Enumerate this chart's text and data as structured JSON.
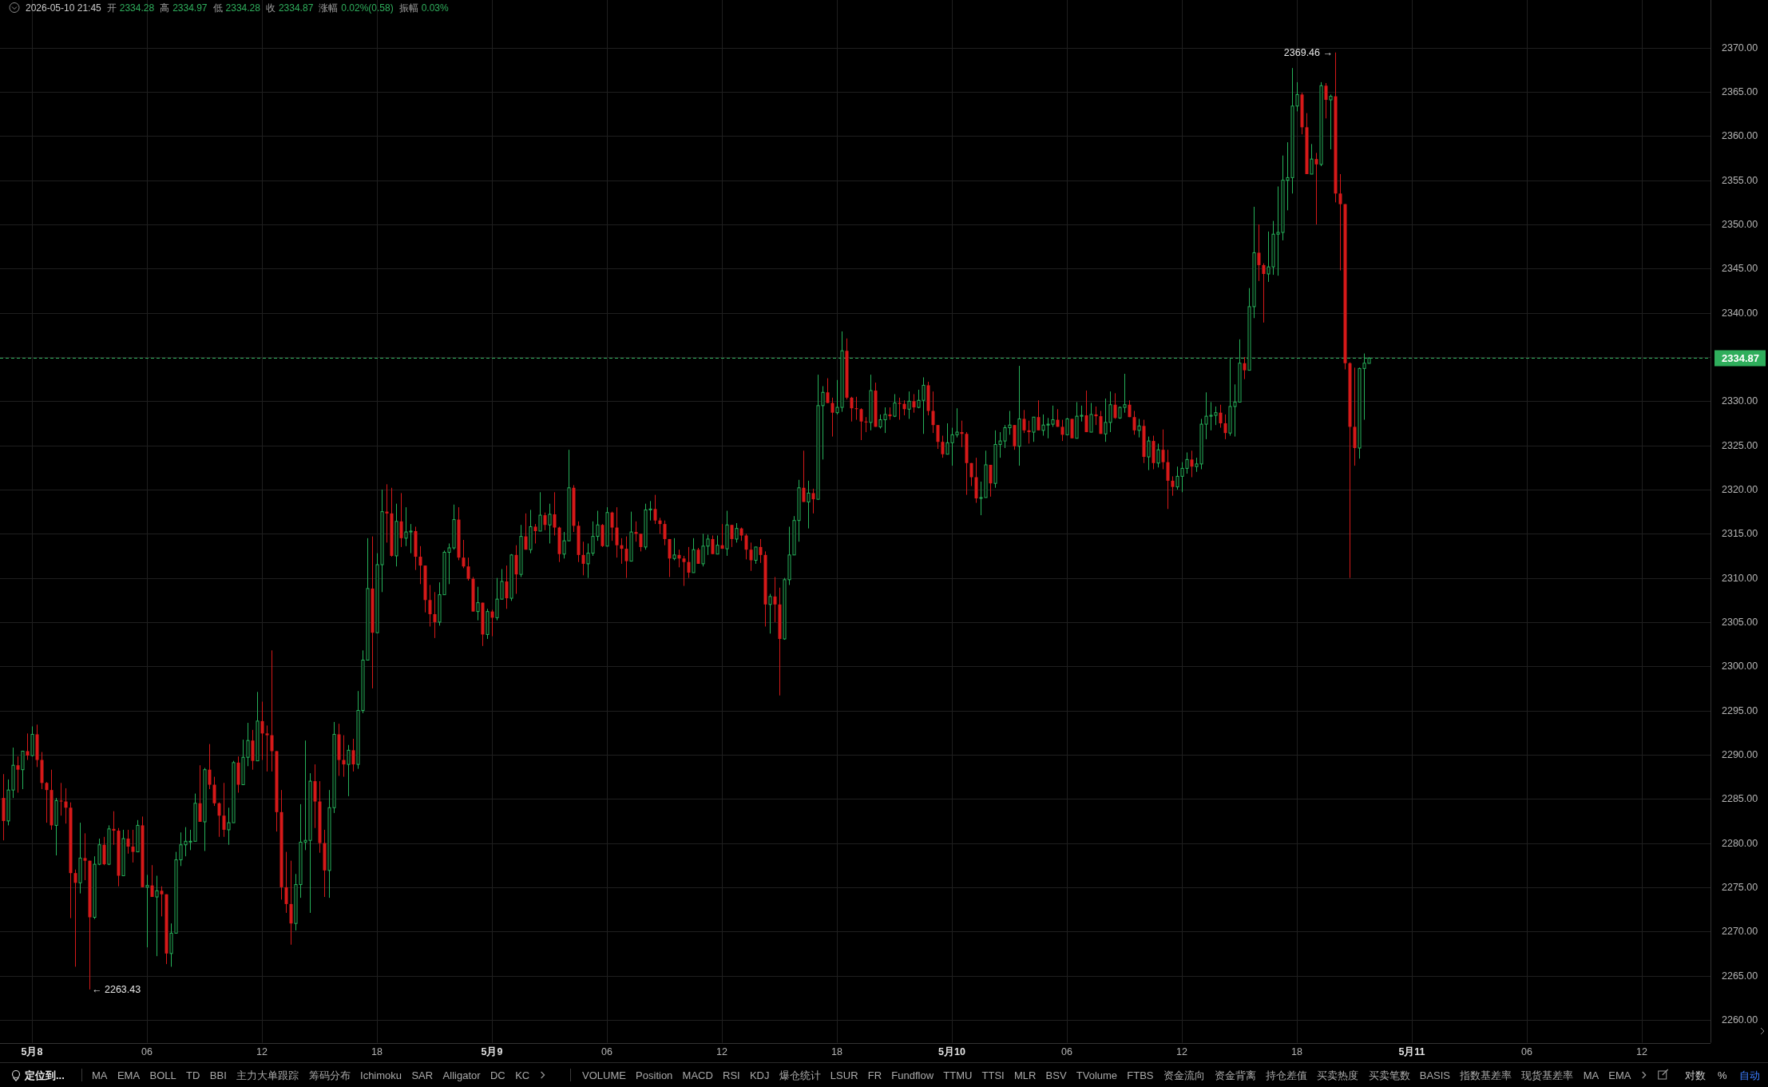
{
  "chart_data": {
    "type": "candlestick",
    "x": [
      "2026-05-07T22:30",
      "2026-05-07T22:45",
      "2026-05-07T23:00",
      "2026-05-07T23:15",
      "2026-05-07T23:30",
      "2026-05-07T23:45",
      "2026-05-08T00:00",
      "2026-05-08T00:15",
      "2026-05-08T00:30",
      "2026-05-08T00:45",
      "2026-05-08T01:00",
      "2026-05-08T01:15",
      "2026-05-08T01:30",
      "2026-05-08T01:45",
      "2026-05-08T02:00",
      "2026-05-08T02:15",
      "2026-05-08T02:30",
      "2026-05-08T02:45",
      "2026-05-08T03:00",
      "2026-05-08T03:15",
      "2026-05-08T03:30",
      "2026-05-08T03:45",
      "2026-05-08T04:00",
      "2026-05-08T04:15",
      "2026-05-08T04:30",
      "2026-05-08T04:45",
      "2026-05-08T05:00",
      "2026-05-08T05:15",
      "2026-05-08T05:30",
      "2026-05-08T05:45",
      "2026-05-08T06:00",
      "2026-05-08T06:15",
      "2026-05-08T06:30",
      "2026-05-08T06:45",
      "2026-05-08T07:00",
      "2026-05-08T07:15",
      "2026-05-08T07:30",
      "2026-05-08T07:45",
      "2026-05-08T08:00",
      "2026-05-08T08:15",
      "2026-05-08T08:30",
      "2026-05-08T08:45",
      "2026-05-08T09:00",
      "2026-05-08T09:15",
      "2026-05-08T09:30",
      "2026-05-08T09:45",
      "2026-05-08T10:00",
      "2026-05-08T10:15",
      "2026-05-08T10:30",
      "2026-05-08T10:45",
      "2026-05-08T11:00",
      "2026-05-08T11:15",
      "2026-05-08T11:30",
      "2026-05-08T11:45",
      "2026-05-08T12:00",
      "2026-05-08T12:15",
      "2026-05-08T12:30",
      "2026-05-08T12:45",
      "2026-05-08T13:00",
      "2026-05-08T13:15",
      "2026-05-08T13:30",
      "2026-05-08T13:45",
      "2026-05-08T14:00",
      "2026-05-08T14:15",
      "2026-05-08T14:30",
      "2026-05-08T14:45",
      "2026-05-08T15:00",
      "2026-05-08T15:15",
      "2026-05-08T15:30",
      "2026-05-08T15:45",
      "2026-05-08T16:00",
      "2026-05-08T16:15",
      "2026-05-08T16:30",
      "2026-05-08T16:45",
      "2026-05-08T17:00",
      "2026-05-08T17:15",
      "2026-05-08T17:30",
      "2026-05-08T17:45",
      "2026-05-08T18:00",
      "2026-05-08T18:15",
      "2026-05-08T18:30",
      "2026-05-08T18:45",
      "2026-05-08T19:00",
      "2026-05-08T19:15",
      "2026-05-08T19:30",
      "2026-05-08T19:45",
      "2026-05-08T20:00",
      "2026-05-08T20:15",
      "2026-05-08T20:30",
      "2026-05-08T20:45",
      "2026-05-08T21:00",
      "2026-05-08T21:15",
      "2026-05-08T21:30",
      "2026-05-08T21:45",
      "2026-05-08T22:00",
      "2026-05-08T22:15",
      "2026-05-08T22:30",
      "2026-05-08T22:45",
      "2026-05-08T23:00",
      "2026-05-08T23:15",
      "2026-05-08T23:30",
      "2026-05-08T23:45",
      "2026-05-09T00:00",
      "2026-05-09T00:15",
      "2026-05-09T00:30",
      "2026-05-09T00:45",
      "2026-05-09T01:00",
      "2026-05-09T01:15",
      "2026-05-09T01:30",
      "2026-05-09T01:45",
      "2026-05-09T02:00",
      "2026-05-09T02:15",
      "2026-05-09T02:30",
      "2026-05-09T02:45",
      "2026-05-09T03:00",
      "2026-05-09T03:15",
      "2026-05-09T03:30",
      "2026-05-09T03:45",
      "2026-05-09T04:00",
      "2026-05-09T04:15",
      "2026-05-09T04:30",
      "2026-05-09T04:45",
      "2026-05-09T05:00",
      "2026-05-09T05:15",
      "2026-05-09T05:30",
      "2026-05-09T05:45",
      "2026-05-09T06:00",
      "2026-05-09T06:15",
      "2026-05-09T06:30",
      "2026-05-09T06:45",
      "2026-05-09T07:00",
      "2026-05-09T07:15",
      "2026-05-09T07:30",
      "2026-05-09T07:45",
      "2026-05-09T08:00",
      "2026-05-09T08:15",
      "2026-05-09T08:30",
      "2026-05-09T08:45",
      "2026-05-09T09:00",
      "2026-05-09T09:15",
      "2026-05-09T09:30",
      "2026-05-09T09:45",
      "2026-05-09T10:00",
      "2026-05-09T10:15",
      "2026-05-09T10:30",
      "2026-05-09T10:45",
      "2026-05-09T11:00",
      "2026-05-09T11:15",
      "2026-05-09T11:30",
      "2026-05-09T11:45",
      "2026-05-09T12:00",
      "2026-05-09T12:15",
      "2026-05-09T12:30",
      "2026-05-09T12:45",
      "2026-05-09T13:00",
      "2026-05-09T13:15",
      "2026-05-09T13:30",
      "2026-05-09T13:45",
      "2026-05-09T14:00",
      "2026-05-09T14:15",
      "2026-05-09T14:30",
      "2026-05-09T14:45",
      "2026-05-09T15:00",
      "2026-05-09T15:15",
      "2026-05-09T15:30",
      "2026-05-09T15:45",
      "2026-05-09T16:00",
      "2026-05-09T16:15",
      "2026-05-09T16:30",
      "2026-05-09T16:45",
      "2026-05-09T17:00",
      "2026-05-09T17:15",
      "2026-05-09T17:30",
      "2026-05-09T17:45",
      "2026-05-09T18:00",
      "2026-05-09T18:15",
      "2026-05-09T18:30",
      "2026-05-09T18:45",
      "2026-05-09T19:00",
      "2026-05-09T19:15",
      "2026-05-09T19:30",
      "2026-05-09T19:45",
      "2026-05-09T20:00",
      "2026-05-09T20:15",
      "2026-05-09T20:30",
      "2026-05-09T20:45",
      "2026-05-09T21:00",
      "2026-05-09T21:15",
      "2026-05-09T21:30",
      "2026-05-09T21:45",
      "2026-05-09T22:00",
      "2026-05-09T22:15",
      "2026-05-09T22:30",
      "2026-05-09T22:45",
      "2026-05-09T23:00",
      "2026-05-09T23:15",
      "2026-05-09T23:30",
      "2026-05-09T23:45",
      "2026-05-10T00:00",
      "2026-05-10T00:15",
      "2026-05-10T00:30",
      "2026-05-10T00:45",
      "2026-05-10T01:00",
      "2026-05-10T01:15",
      "2026-05-10T01:30",
      "2026-05-10T01:45",
      "2026-05-10T02:00",
      "2026-05-10T02:15",
      "2026-05-10T02:30",
      "2026-05-10T02:45",
      "2026-05-10T03:00",
      "2026-05-10T03:15",
      "2026-05-10T03:30",
      "2026-05-10T03:45",
      "2026-05-10T04:00",
      "2026-05-10T04:15",
      "2026-05-10T04:30",
      "2026-05-10T04:45",
      "2026-05-10T05:00",
      "2026-05-10T05:15",
      "2026-05-10T05:30",
      "2026-05-10T05:45",
      "2026-05-10T06:00",
      "2026-05-10T06:15",
      "2026-05-10T06:30",
      "2026-05-10T06:45",
      "2026-05-10T07:00",
      "2026-05-10T07:15",
      "2026-05-10T07:30",
      "2026-05-10T07:45",
      "2026-05-10T08:00",
      "2026-05-10T08:15",
      "2026-05-10T08:30",
      "2026-05-10T08:45",
      "2026-05-10T09:00",
      "2026-05-10T09:15",
      "2026-05-10T09:30",
      "2026-05-10T09:45",
      "2026-05-10T10:00",
      "2026-05-10T10:15",
      "2026-05-10T10:30",
      "2026-05-10T10:45",
      "2026-05-10T11:00",
      "2026-05-10T11:15",
      "2026-05-10T11:30",
      "2026-05-10T11:45",
      "2026-05-10T12:00",
      "2026-05-10T12:15",
      "2026-05-10T12:30",
      "2026-05-10T12:45",
      "2026-05-10T13:00",
      "2026-05-10T13:15",
      "2026-05-10T13:30",
      "2026-05-10T13:45",
      "2026-05-10T14:00",
      "2026-05-10T14:15",
      "2026-05-10T14:30",
      "2026-05-10T14:45",
      "2026-05-10T15:00",
      "2026-05-10T15:15",
      "2026-05-10T15:30",
      "2026-05-10T15:45",
      "2026-05-10T16:00",
      "2026-05-10T16:15",
      "2026-05-10T16:30",
      "2026-05-10T16:45",
      "2026-05-10T17:00",
      "2026-05-10T17:15",
      "2026-05-10T17:30",
      "2026-05-10T17:45",
      "2026-05-10T18:00",
      "2026-05-10T18:15",
      "2026-05-10T18:30",
      "2026-05-10T18:45",
      "2026-05-10T19:00",
      "2026-05-10T19:15",
      "2026-05-10T19:30",
      "2026-05-10T19:45",
      "2026-05-10T20:00",
      "2026-05-10T20:15",
      "2026-05-10T20:30",
      "2026-05-10T20:45",
      "2026-05-10T21:00",
      "2026-05-10T21:15",
      "2026-05-10T21:30",
      "2026-05-10T21:45"
    ],
    "ohlc": [
      [
        2285.1,
        2287.8,
        2280.3,
        2282.5
      ],
      [
        2282.5,
        2287.2,
        2282.0,
        2286.0
      ],
      [
        2286.0,
        2290.8,
        2285.1,
        2288.8
      ],
      [
        2288.8,
        2289.8,
        2285.7,
        2288.3
      ],
      [
        2288.3,
        2290.4,
        2286.1,
        2290.4
      ],
      [
        2290.4,
        2292.4,
        2289.4,
        2289.9
      ],
      [
        2289.9,
        2293.2,
        2289.8,
        2292.3
      ],
      [
        2292.3,
        2293.4,
        2288.6,
        2289.4
      ],
      [
        2289.4,
        2290.3,
        2286.1,
        2286.8
      ],
      [
        2286.8,
        2286.9,
        2282.3,
        2286.0
      ],
      [
        2286.0,
        2288.3,
        2281.5,
        2282.0
      ],
      [
        2282.0,
        2285.1,
        2278.6,
        2284.8
      ],
      [
        2284.8,
        2286.8,
        2283.1,
        2284.7
      ],
      [
        2284.7,
        2286.2,
        2282.2,
        2284.0
      ],
      [
        2284.0,
        2284.6,
        2271.5,
        2276.6
      ],
      [
        2276.6,
        2277.0,
        2266.0,
        2275.5
      ],
      [
        2275.5,
        2282.3,
        2274.3,
        2278.3
      ],
      [
        2278.3,
        2281.1,
        2275.8,
        2278.0
      ],
      [
        2278.0,
        2278.0,
        2263.43,
        2271.6
      ],
      [
        2271.6,
        2278.5,
        2271.4,
        2277.6
      ],
      [
        2277.6,
        2280.5,
        2277.5,
        2279.8
      ],
      [
        2279.8,
        2280.7,
        2277.5,
        2277.6
      ],
      [
        2277.6,
        2282.0,
        2277.5,
        2281.6
      ],
      [
        2281.6,
        2283.6,
        2279.8,
        2281.4
      ],
      [
        2281.4,
        2281.7,
        2275.1,
        2276.3
      ],
      [
        2276.3,
        2281.5,
        2276.3,
        2280.5
      ],
      [
        2280.5,
        2281.5,
        2278.8,
        2279.6
      ],
      [
        2279.6,
        2281.5,
        2277.8,
        2279.0
      ],
      [
        2279.0,
        2282.6,
        2279.0,
        2282.0
      ],
      [
        2282.0,
        2283.0,
        2275.0,
        2275.0
      ],
      [
        2275.0,
        2276.4,
        2268.2,
        2275.2
      ],
      [
        2275.2,
        2277.5,
        2273.9,
        2273.9
      ],
      [
        2273.9,
        2276.3,
        2267.2,
        2274.6
      ],
      [
        2274.6,
        2275.1,
        2271.7,
        2274.2
      ],
      [
        2274.2,
        2274.2,
        2266.3,
        2267.5
      ],
      [
        2267.5,
        2270.9,
        2266.0,
        2269.8
      ],
      [
        2269.8,
        2279.0,
        2269.8,
        2278.1
      ],
      [
        2278.1,
        2281.2,
        2277.4,
        2279.8
      ],
      [
        2279.8,
        2281.8,
        2278.5,
        2280.2
      ],
      [
        2280.2,
        2281.5,
        2279.2,
        2280.2
      ],
      [
        2280.2,
        2285.6,
        2280.2,
        2284.5
      ],
      [
        2284.5,
        2288.8,
        2282.4,
        2282.4
      ],
      [
        2282.4,
        2288.5,
        2279.1,
        2288.3
      ],
      [
        2288.3,
        2291.2,
        2286.1,
        2286.6
      ],
      [
        2286.6,
        2287.5,
        2284.2,
        2284.5
      ],
      [
        2284.5,
        2284.6,
        2280.7,
        2283.1
      ],
      [
        2283.1,
        2286.8,
        2280.7,
        2281.5
      ],
      [
        2281.5,
        2284.0,
        2279.8,
        2282.3
      ],
      [
        2282.3,
        2289.3,
        2282.3,
        2289.1
      ],
      [
        2289.1,
        2289.8,
        2285.7,
        2286.6
      ],
      [
        2286.6,
        2291.7,
        2286.6,
        2289.7
      ],
      [
        2289.7,
        2293.6,
        2288.7,
        2291.6
      ],
      [
        2291.6,
        2292.8,
        2288.3,
        2289.3
      ],
      [
        2289.3,
        2297.1,
        2289.3,
        2293.8
      ],
      [
        2293.8,
        2296.0,
        2289.4,
        2292.4
      ],
      [
        2292.4,
        2293.3,
        2288.1,
        2292.2
      ],
      [
        2292.2,
        2301.8,
        2288.1,
        2290.4
      ],
      [
        2290.4,
        2290.4,
        2281.3,
        2283.5
      ],
      [
        2283.5,
        2286.0,
        2273.6,
        2275.0
      ],
      [
        2275.0,
        2279.0,
        2272.1,
        2273.1
      ],
      [
        2273.1,
        2278.0,
        2268.5,
        2270.9
      ],
      [
        2270.9,
        2276.5,
        2270.1,
        2275.3
      ],
      [
        2275.3,
        2284.4,
        2273.8,
        2280.1
      ],
      [
        2280.1,
        2291.6,
        2279.2,
        2280.3
      ],
      [
        2280.3,
        2287.9,
        2272.1,
        2287.0
      ],
      [
        2287.0,
        2288.9,
        2281.7,
        2284.7
      ],
      [
        2284.7,
        2287.0,
        2278.9,
        2280.0
      ],
      [
        2280.0,
        2281.5,
        2273.9,
        2276.9
      ],
      [
        2276.9,
        2286.0,
        2273.8,
        2284.0
      ],
      [
        2284.0,
        2293.7,
        2283.4,
        2292.3
      ],
      [
        2292.3,
        2293.5,
        2287.6,
        2289.4
      ],
      [
        2289.4,
        2292.2,
        2287.5,
        2288.9
      ],
      [
        2288.9,
        2291.1,
        2285.3,
        2290.5
      ],
      [
        2290.5,
        2291.8,
        2288.1,
        2288.9
      ],
      [
        2288.9,
        2297.2,
        2288.4,
        2295.0
      ],
      [
        2295.0,
        2301.8,
        2294.7,
        2300.7
      ],
      [
        2300.7,
        2314.5,
        2300.7,
        2308.8
      ],
      [
        2308.8,
        2314.7,
        2297.5,
        2303.8
      ],
      [
        2303.8,
        2312.8,
        2303.8,
        2311.5
      ],
      [
        2311.5,
        2320.0,
        2308.4,
        2317.5
      ],
      [
        2317.5,
        2320.6,
        2314.0,
        2317.3
      ],
      [
        2317.3,
        2320.2,
        2312.4,
        2312.5
      ],
      [
        2312.5,
        2318.4,
        2311.3,
        2316.4
      ],
      [
        2316.4,
        2319.6,
        2313.5,
        2314.5
      ],
      [
        2314.5,
        2318.0,
        2313.6,
        2315.2
      ],
      [
        2315.2,
        2316.1,
        2312.8,
        2315.3
      ],
      [
        2315.3,
        2315.8,
        2310.9,
        2312.4
      ],
      [
        2312.4,
        2313.6,
        2309.3,
        2311.4
      ],
      [
        2311.4,
        2311.4,
        2306.1,
        2307.5
      ],
      [
        2307.5,
        2309.2,
        2304.5,
        2305.9
      ],
      [
        2305.9,
        2308.4,
        2303.2,
        2305.0
      ],
      [
        2305.0,
        2309.5,
        2304.6,
        2308.1
      ],
      [
        2308.1,
        2313.1,
        2308.1,
        2312.9
      ],
      [
        2312.9,
        2313.9,
        2309.3,
        2313.4
      ],
      [
        2313.4,
        2318.3,
        2313.2,
        2316.6
      ],
      [
        2316.6,
        2318.0,
        2312.0,
        2312.3
      ],
      [
        2312.3,
        2314.3,
        2311.1,
        2311.3
      ],
      [
        2311.3,
        2312.3,
        2309.7,
        2309.9
      ],
      [
        2309.9,
        2310.1,
        2306.2,
        2306.2
      ],
      [
        2306.2,
        2309.0,
        2305.2,
        2307.2
      ],
      [
        2307.2,
        2307.2,
        2302.3,
        2303.6
      ],
      [
        2303.6,
        2306.5,
        2303.1,
        2306.2
      ],
      [
        2306.2,
        2306.4,
        2303.4,
        2305.5
      ],
      [
        2305.5,
        2310.0,
        2305.2,
        2307.6
      ],
      [
        2307.6,
        2311.0,
        2307.6,
        2309.6
      ],
      [
        2309.6,
        2311.4,
        2306.5,
        2307.7
      ],
      [
        2307.7,
        2312.7,
        2307.4,
        2312.6
      ],
      [
        2312.6,
        2313.7,
        2308.2,
        2310.4
      ],
      [
        2310.4,
        2316.0,
        2310.1,
        2314.7
      ],
      [
        2314.7,
        2317.3,
        2313.2,
        2313.2
      ],
      [
        2313.2,
        2317.7,
        2312.8,
        2315.8
      ],
      [
        2315.8,
        2316.1,
        2313.9,
        2315.3
      ],
      [
        2315.3,
        2319.7,
        2315.3,
        2317.1
      ],
      [
        2317.1,
        2317.4,
        2315.4,
        2316.0
      ],
      [
        2316.0,
        2318.4,
        2313.9,
        2317.2
      ],
      [
        2317.2,
        2319.7,
        2314.8,
        2315.7
      ],
      [
        2315.7,
        2315.8,
        2311.8,
        2312.7
      ],
      [
        2312.7,
        2315.2,
        2312.2,
        2314.2
      ],
      [
        2314.2,
        2324.5,
        2314.2,
        2320.2
      ],
      [
        2320.2,
        2320.5,
        2315.2,
        2315.9
      ],
      [
        2315.9,
        2316.4,
        2311.8,
        2312.6
      ],
      [
        2312.6,
        2314.1,
        2310.3,
        2311.6
      ],
      [
        2311.6,
        2313.9,
        2310.0,
        2312.8
      ],
      [
        2312.8,
        2316.4,
        2312.5,
        2314.7
      ],
      [
        2314.7,
        2317.6,
        2314.2,
        2316.0
      ],
      [
        2316.0,
        2316.1,
        2313.5,
        2313.6
      ],
      [
        2313.6,
        2318.0,
        2313.6,
        2317.4
      ],
      [
        2317.4,
        2317.5,
        2314.2,
        2315.7
      ],
      [
        2315.7,
        2318.0,
        2312.3,
        2313.7
      ],
      [
        2313.7,
        2314.5,
        2311.6,
        2313.3
      ],
      [
        2313.3,
        2314.7,
        2310.0,
        2311.9
      ],
      [
        2311.9,
        2317.5,
        2311.9,
        2315.2
      ],
      [
        2315.2,
        2316.4,
        2314.1,
        2315.0
      ],
      [
        2315.0,
        2315.0,
        2313.0,
        2313.5
      ],
      [
        2313.5,
        2318.4,
        2313.2,
        2317.7
      ],
      [
        2317.7,
        2318.7,
        2316.5,
        2317.8
      ],
      [
        2317.8,
        2319.4,
        2316.1,
        2316.5
      ],
      [
        2316.5,
        2316.8,
        2315.0,
        2316.1
      ],
      [
        2316.1,
        2316.5,
        2313.7,
        2314.4
      ],
      [
        2314.4,
        2314.4,
        2310.1,
        2312.2
      ],
      [
        2312.2,
        2314.5,
        2312.0,
        2312.6
      ],
      [
        2312.6,
        2313.2,
        2311.2,
        2312.2
      ],
      [
        2312.2,
        2312.5,
        2309.1,
        2311.8
      ],
      [
        2311.8,
        2313.5,
        2310.0,
        2310.6
      ],
      [
        2310.6,
        2314.5,
        2310.6,
        2313.2
      ],
      [
        2313.2,
        2313.4,
        2311.6,
        2311.6
      ],
      [
        2311.6,
        2315.0,
        2311.3,
        2313.6
      ],
      [
        2313.6,
        2314.9,
        2312.6,
        2314.4
      ],
      [
        2314.4,
        2314.8,
        2312.7,
        2312.7
      ],
      [
        2312.7,
        2314.8,
        2312.7,
        2313.7
      ],
      [
        2313.7,
        2316.1,
        2313.3,
        2313.3
      ],
      [
        2313.3,
        2317.6,
        2312.5,
        2316.0
      ],
      [
        2316.0,
        2316.0,
        2313.5,
        2314.4
      ],
      [
        2314.4,
        2316.2,
        2314.0,
        2315.6
      ],
      [
        2315.6,
        2315.7,
        2314.2,
        2314.8
      ],
      [
        2314.8,
        2315.0,
        2312.1,
        2313.2
      ],
      [
        2313.2,
        2314.0,
        2310.8,
        2312.0
      ],
      [
        2312.0,
        2313.5,
        2311.6,
        2313.5
      ],
      [
        2313.5,
        2314.4,
        2311.7,
        2312.6
      ],
      [
        2312.6,
        2313.0,
        2304.5,
        2307.0
      ],
      [
        2307.0,
        2308.2,
        2303.7,
        2307.9
      ],
      [
        2307.9,
        2310.1,
        2305.0,
        2307.0
      ],
      [
        2307.0,
        2308.9,
        2296.7,
        2303.1
      ],
      [
        2303.1,
        2310.0,
        2303.0,
        2309.8
      ],
      [
        2309.8,
        2315.8,
        2309.2,
        2312.6
      ],
      [
        2312.6,
        2317.0,
        2312.6,
        2316.5
      ],
      [
        2316.5,
        2321.1,
        2314.1,
        2320.2
      ],
      [
        2320.2,
        2324.4,
        2318.6,
        2318.6
      ],
      [
        2318.6,
        2321.0,
        2315.6,
        2319.6
      ],
      [
        2319.6,
        2320.1,
        2317.3,
        2318.9
      ],
      [
        2318.9,
        2333.0,
        2318.9,
        2329.5
      ],
      [
        2329.5,
        2331.7,
        2323.4,
        2331.0
      ],
      [
        2331.0,
        2332.6,
        2329.8,
        2329.8
      ],
      [
        2329.8,
        2330.4,
        2326.0,
        2328.7
      ],
      [
        2328.7,
        2332.4,
        2328.5,
        2329.3
      ],
      [
        2329.3,
        2337.9,
        2328.8,
        2335.7
      ],
      [
        2335.7,
        2337.1,
        2330.2,
        2330.4
      ],
      [
        2330.4,
        2330.5,
        2327.7,
        2329.2
      ],
      [
        2329.2,
        2330.5,
        2327.9,
        2329.1
      ],
      [
        2329.1,
        2329.2,
        2325.6,
        2327.7
      ],
      [
        2327.7,
        2328.2,
        2326.5,
        2327.6
      ],
      [
        2327.6,
        2333.0,
        2326.7,
        2331.2
      ],
      [
        2331.2,
        2332.1,
        2327.1,
        2327.1
      ],
      [
        2327.1,
        2328.5,
        2326.9,
        2327.9
      ],
      [
        2327.9,
        2329.3,
        2326.4,
        2328.5
      ],
      [
        2328.5,
        2329.3,
        2327.9,
        2328.3
      ],
      [
        2328.3,
        2330.8,
        2328.2,
        2329.8
      ],
      [
        2329.8,
        2330.4,
        2327.9,
        2329.7
      ],
      [
        2329.7,
        2330.1,
        2328.4,
        2329.1
      ],
      [
        2329.1,
        2331.1,
        2328.0,
        2330.0
      ],
      [
        2330.0,
        2330.8,
        2328.7,
        2329.3
      ],
      [
        2329.3,
        2331.3,
        2329.2,
        2330.1
      ],
      [
        2330.1,
        2332.7,
        2326.3,
        2331.8
      ],
      [
        2331.8,
        2332.2,
        2328.4,
        2328.9
      ],
      [
        2328.9,
        2331.1,
        2326.4,
        2327.3
      ],
      [
        2327.3,
        2327.3,
        2324.6,
        2325.4
      ],
      [
        2325.4,
        2326.1,
        2323.6,
        2324.0
      ],
      [
        2324.0,
        2327.5,
        2324.0,
        2325.3
      ],
      [
        2325.3,
        2327.0,
        2322.7,
        2326.2
      ],
      [
        2326.2,
        2329.2,
        2325.9,
        2326.5
      ],
      [
        2326.5,
        2327.8,
        2324.8,
        2326.3
      ],
      [
        2326.3,
        2326.5,
        2319.4,
        2323.0
      ],
      [
        2323.0,
        2323.0,
        2320.4,
        2321.4
      ],
      [
        2321.4,
        2323.6,
        2318.5,
        2319.0
      ],
      [
        2319.0,
        2320.9,
        2317.1,
        2319.1
      ],
      [
        2319.1,
        2324.4,
        2319.1,
        2322.8
      ],
      [
        2322.8,
        2322.8,
        2319.2,
        2320.7
      ],
      [
        2320.7,
        2326.7,
        2320.2,
        2325.1
      ],
      [
        2325.1,
        2326.5,
        2323.6,
        2325.5
      ],
      [
        2325.5,
        2327.3,
        2324.7,
        2327.0
      ],
      [
        2327.0,
        2328.9,
        2326.2,
        2327.3
      ],
      [
        2327.3,
        2327.3,
        2324.5,
        2324.9
      ],
      [
        2324.9,
        2334.0,
        2322.7,
        2328.0
      ],
      [
        2328.0,
        2329.0,
        2326.4,
        2326.7
      ],
      [
        2326.7,
        2327.8,
        2325.2,
        2326.5
      ],
      [
        2326.5,
        2328.2,
        2325.4,
        2328.2
      ],
      [
        2328.2,
        2330.1,
        2326.7,
        2326.7
      ],
      [
        2326.7,
        2328.5,
        2326.1,
        2327.3
      ],
      [
        2327.3,
        2328.1,
        2325.8,
        2327.4
      ],
      [
        2327.4,
        2329.5,
        2327.1,
        2327.9
      ],
      [
        2327.9,
        2329.1,
        2327.1,
        2327.1
      ],
      [
        2327.1,
        2327.9,
        2325.5,
        2326.2
      ],
      [
        2326.2,
        2328.1,
        2326.2,
        2328.0
      ],
      [
        2328.0,
        2328.0,
        2325.8,
        2325.8
      ],
      [
        2325.8,
        2329.9,
        2325.8,
        2328.3
      ],
      [
        2328.3,
        2329.5,
        2327.7,
        2328.4
      ],
      [
        2328.4,
        2331.2,
        2326.5,
        2326.5
      ],
      [
        2326.5,
        2329.8,
        2326.5,
        2328.5
      ],
      [
        2328.5,
        2329.4,
        2327.3,
        2328.3
      ],
      [
        2328.3,
        2328.9,
        2326.3,
        2326.3
      ],
      [
        2326.3,
        2330.3,
        2325.4,
        2327.6
      ],
      [
        2327.6,
        2331.1,
        2326.5,
        2329.6
      ],
      [
        2329.6,
        2330.9,
        2328.0,
        2328.1
      ],
      [
        2328.1,
        2329.4,
        2328.0,
        2329.3
      ],
      [
        2329.3,
        2333.1,
        2328.7,
        2329.6
      ],
      [
        2329.6,
        2330.1,
        2328.2,
        2328.2
      ],
      [
        2328.2,
        2328.9,
        2326.2,
        2326.7
      ],
      [
        2326.7,
        2328.0,
        2325.9,
        2327.2
      ],
      [
        2327.2,
        2327.9,
        2323.0,
        2323.7
      ],
      [
        2323.7,
        2326.0,
        2322.2,
        2325.5
      ],
      [
        2325.5,
        2326.1,
        2322.3,
        2323.0
      ],
      [
        2323.0,
        2325.2,
        2322.5,
        2324.5
      ],
      [
        2324.5,
        2326.8,
        2322.3,
        2323.1
      ],
      [
        2323.1,
        2324.5,
        2317.8,
        2321.0
      ],
      [
        2321.0,
        2321.5,
        2319.3,
        2320.3
      ],
      [
        2320.3,
        2322.6,
        2320.0,
        2321.5
      ],
      [
        2321.5,
        2323.1,
        2319.7,
        2322.4
      ],
      [
        2322.4,
        2324.2,
        2321.8,
        2323.4
      ],
      [
        2323.4,
        2324.4,
        2321.4,
        2322.6
      ],
      [
        2322.6,
        2323.6,
        2322.0,
        2322.9
      ],
      [
        2322.9,
        2328.0,
        2322.3,
        2327.4
      ],
      [
        2327.4,
        2331.0,
        2325.7,
        2328.3
      ],
      [
        2328.3,
        2329.9,
        2326.7,
        2328.4
      ],
      [
        2328.4,
        2329.4,
        2327.3,
        2328.7
      ],
      [
        2328.7,
        2329.6,
        2327.0,
        2327.5
      ],
      [
        2327.5,
        2328.5,
        2325.7,
        2326.4
      ],
      [
        2326.4,
        2334.8,
        2326.1,
        2329.4
      ],
      [
        2329.4,
        2331.9,
        2326.0,
        2329.9
      ],
      [
        2329.9,
        2337.0,
        2329.9,
        2334.3
      ],
      [
        2334.3,
        2335.0,
        2332.5,
        2333.5
      ],
      [
        2333.5,
        2342.8,
        2333.5,
        2340.7
      ],
      [
        2340.7,
        2352.0,
        2339.4,
        2346.8
      ],
      [
        2346.8,
        2350.0,
        2343.6,
        2345.4
      ],
      [
        2345.4,
        2345.6,
        2338.9,
        2344.4
      ],
      [
        2344.4,
        2349.2,
        2343.5,
        2345.2
      ],
      [
        2345.2,
        2350.4,
        2344.3,
        2348.9
      ],
      [
        2348.9,
        2354.3,
        2344.2,
        2349.1
      ],
      [
        2349.1,
        2357.8,
        2348.2,
        2355.0
      ],
      [
        2355.0,
        2359.3,
        2351.6,
        2355.3
      ],
      [
        2355.3,
        2367.7,
        2353.5,
        2363.4
      ],
      [
        2363.4,
        2366.1,
        2362.8,
        2364.7
      ],
      [
        2364.7,
        2364.9,
        2360.2,
        2361.0
      ],
      [
        2361.0,
        2362.6,
        2355.7,
        2355.7
      ],
      [
        2355.7,
        2359.1,
        2355.7,
        2357.4
      ],
      [
        2357.4,
        2358.1,
        2350.0,
        2356.8
      ],
      [
        2356.8,
        2366.1,
        2356.6,
        2365.7
      ],
      [
        2365.7,
        2366.0,
        2362.0,
        2364.1
      ],
      [
        2364.1,
        2364.7,
        2358.5,
        2364.5
      ],
      [
        2364.5,
        2369.46,
        2352.5,
        2353.5
      ],
      [
        2353.5,
        2355.7,
        2344.8,
        2352.3
      ],
      [
        2352.3,
        2352.3,
        2333.6,
        2334.3
      ],
      [
        2334.3,
        2334.4,
        2310.0,
        2327.1
      ],
      [
        2327.1,
        2333.8,
        2322.7,
        2324.7
      ],
      [
        2324.7,
        2333.8,
        2323.5,
        2333.7
      ],
      [
        2333.7,
        2335.4,
        2327.9,
        2334.3
      ],
      [
        2334.28,
        2334.97,
        2334.28,
        2334.87
      ]
    ],
    "colors": [
      "#d61919",
      "#26b15a",
      "#26b15a",
      "#d61919",
      "#26b15a",
      "#d61919",
      "#26b15a",
      "#d61919",
      "#d61919",
      "#d61919",
      "#d61919",
      "#26b15a",
      "#d61919",
      "#d61919",
      "#d61919",
      "#d61919",
      "#26b15a",
      "#d61919",
      "#d61919",
      "#26b15a",
      "#26b15a",
      "#d61919",
      "#26b15a",
      "#d61919",
      "#d61919",
      "#26b15a",
      "#d61919",
      "#d61919",
      "#26b15a",
      "#d61919",
      "#26b15a",
      "#d61919",
      "#26b15a",
      "#d61919",
      "#d61919",
      "#26b15a",
      "#26b15a",
      "#26b15a",
      "#26b15a",
      "#26b15a",
      "#26b15a",
      "#d61919",
      "#26b15a",
      "#d61919",
      "#d61919",
      "#d61919",
      "#d61919",
      "#26b15a",
      "#26b15a",
      "#d61919",
      "#26b15a",
      "#26b15a",
      "#d61919",
      "#26b15a",
      "#d61919",
      "#d61919",
      "#d61919",
      "#d61919",
      "#d61919",
      "#d61919",
      "#d61919",
      "#26b15a",
      "#26b15a",
      "#26b15a",
      "#26b15a",
      "#d61919",
      "#d61919",
      "#d61919",
      "#26b15a",
      "#26b15a",
      "#d61919",
      "#d61919",
      "#26b15a",
      "#d61919",
      "#26b15a",
      "#26b15a",
      "#26b15a",
      "#d61919",
      "#26b15a",
      "#26b15a",
      "#d61919",
      "#d61919",
      "#26b15a",
      "#d61919",
      "#26b15a",
      "#26b15a",
      "#d61919",
      "#d61919",
      "#d61919",
      "#d61919",
      "#d61919",
      "#26b15a",
      "#26b15a",
      "#26b15a",
      "#26b15a",
      "#d61919",
      "#d61919",
      "#d61919",
      "#d61919",
      "#26b15a",
      "#d61919",
      "#26b15a",
      "#d61919",
      "#26b15a",
      "#26b15a",
      "#d61919",
      "#26b15a",
      "#d61919",
      "#26b15a",
      "#d61919",
      "#26b15a",
      "#d61919",
      "#26b15a",
      "#d61919",
      "#26b15a",
      "#d61919",
      "#d61919",
      "#26b15a",
      "#26b15a",
      "#d61919",
      "#d61919",
      "#d61919",
      "#26b15a",
      "#26b15a",
      "#26b15a",
      "#d61919",
      "#26b15a",
      "#d61919",
      "#d61919",
      "#d61919",
      "#d61919",
      "#26b15a",
      "#d61919",
      "#d61919",
      "#26b15a",
      "#26b15a",
      "#d61919",
      "#d61919",
      "#d61919",
      "#d61919",
      "#26b15a",
      "#d61919",
      "#d61919",
      "#d61919",
      "#26b15a",
      "#d61919",
      "#26b15a",
      "#26b15a",
      "#d61919",
      "#26b15a",
      "#d61919",
      "#26b15a",
      "#d61919",
      "#26b15a",
      "#d61919",
      "#d61919",
      "#d61919",
      "#26b15a",
      "#d61919",
      "#d61919",
      "#26b15a",
      "#d61919",
      "#d61919",
      "#26b15a",
      "#26b15a",
      "#26b15a",
      "#26b15a",
      "#d61919",
      "#26b15a",
      "#d61919",
      "#26b15a",
      "#26b15a",
      "#d61919",
      "#d61919",
      "#26b15a",
      "#26b15a",
      "#d61919",
      "#d61919",
      "#d61919",
      "#d61919",
      "#d61919",
      "#26b15a",
      "#d61919",
      "#26b15a",
      "#26b15a",
      "#d61919",
      "#26b15a",
      "#d61919",
      "#d61919",
      "#26b15a",
      "#d61919",
      "#26b15a",
      "#26b15a",
      "#d61919",
      "#d61919",
      "#d61919",
      "#d61919",
      "#26b15a",
      "#26b15a",
      "#26b15a",
      "#d61919",
      "#d61919",
      "#d61919",
      "#d61919",
      "#26b15a",
      "#26b15a",
      "#d61919",
      "#26b15a",
      "#26b15a",
      "#26b15a",
      "#26b15a",
      "#d61919",
      "#26b15a",
      "#d61919",
      "#d61919",
      "#26b15a",
      "#d61919",
      "#26b15a",
      "#26b15a",
      "#26b15a",
      "#d61919",
      "#d61919",
      "#26b15a",
      "#d61919",
      "#26b15a",
      "#26b15a",
      "#d61919",
      "#26b15a",
      "#d61919",
      "#d61919",
      "#26b15a",
      "#26b15a",
      "#d61919",
      "#26b15a",
      "#26b15a",
      "#d61919",
      "#d61919",
      "#26b15a",
      "#d61919",
      "#26b15a",
      "#d61919",
      "#26b15a",
      "#d61919",
      "#d61919",
      "#d61919",
      "#26b15a",
      "#26b15a",
      "#26b15a",
      "#d61919",
      "#26b15a",
      "#26b15a",
      "#26b15a",
      "#26b15a",
      "#26b15a",
      "#d61919",
      "#d61919",
      "#26b15a",
      "#26b15a",
      "#26b15a",
      "#d61919",
      "#26b15a",
      "#26b15a",
      "#d61919",
      "#d61919",
      "#26b15a",
      "#26b15a",
      "#26b15a",
      "#26b15a",
      "#26b15a",
      "#26b15a",
      "#26b15a",
      "#d61919",
      "#d61919",
      "#26b15a",
      "#d61919",
      "#26b15a",
      "#d61919",
      "#26b15a",
      "#d61919",
      "#d61919",
      "#d61919",
      "#d61919",
      "#d61919",
      "#26b15a",
      "#26b15a",
      "#26b15a"
    ],
    "xlim": [
      "2026-05-07T22:20",
      "2026-05-11T15:35"
    ],
    "xticks": [
      {
        "value": "2026-05-08",
        "label": "5月8"
      },
      {
        "value": "2026-05-08T06:00",
        "label": "06"
      },
      {
        "value": "2026-05-08T12:00",
        "label": "12"
      },
      {
        "value": "2026-05-08T18:00",
        "label": "18"
      },
      {
        "value": "2026-05-09",
        "label": "5月9"
      },
      {
        "value": "2026-05-09T06:00",
        "label": "06"
      },
      {
        "value": "2026-05-09T12:00",
        "label": "12"
      },
      {
        "value": "2026-05-09T18:00",
        "label": "18"
      },
      {
        "value": "2026-05-10",
        "label": "5月10"
      },
      {
        "value": "2026-05-10T06:00",
        "label": "06"
      },
      {
        "value": "2026-05-10T12:00",
        "label": "12"
      },
      {
        "value": "2026-05-10T18:00",
        "label": "18"
      },
      {
        "value": "2026-05-11",
        "label": "5月11"
      },
      {
        "value": "2026-05-11T06:00",
        "label": "06"
      },
      {
        "value": "2026-05-11T12:00",
        "label": "12"
      }
    ],
    "ylim": [
      2257.4,
      2375.4
    ],
    "yticks": [
      {
        "value": 2260,
        "label": "2260.00"
      },
      {
        "value": 2265,
        "label": "2265.00"
      },
      {
        "value": 2270,
        "label": "2270.00"
      },
      {
        "value": 2275,
        "label": "2275.00"
      },
      {
        "value": 2280,
        "label": "2280.00"
      },
      {
        "value": 2285,
        "label": "2285.00"
      },
      {
        "value": 2290,
        "label": "2290.00"
      },
      {
        "value": 2295,
        "label": "2295.00"
      },
      {
        "value": 2300,
        "label": "2300.00"
      },
      {
        "value": 2305,
        "label": "2305.00"
      },
      {
        "value": 2310,
        "label": "2310.00"
      },
      {
        "value": 2315,
        "label": "2315.00"
      },
      {
        "value": 2320,
        "label": "2320.00"
      },
      {
        "value": 2325,
        "label": "2325.00"
      },
      {
        "value": 2330,
        "label": "2330.00"
      },
      {
        "value": 2335,
        "label": null
      },
      {
        "value": 2340,
        "label": "2340.00"
      },
      {
        "value": 2345,
        "label": "2345.00"
      },
      {
        "value": 2350,
        "label": "2350.00"
      },
      {
        "value": 2355,
        "label": "2355.00"
      },
      {
        "value": 2360,
        "label": "2360.00"
      },
      {
        "value": 2365,
        "label": "2365.00"
      },
      {
        "value": 2370,
        "label": "2370.00"
      }
    ],
    "grid": true,
    "ref_lines": [
      {
        "axis": "y",
        "value": 2334.87,
        "label": "2334.87",
        "color": "#2fae5c",
        "line_style": "dashed"
      }
    ],
    "annotations": [
      "2026-05-10 21:45",
      "开",
      "2334.28",
      "高",
      "2334.97",
      "低",
      "2334.28",
      "收",
      "2334.87",
      "涨幅",
      "0.02%(0.58)",
      "振幅",
      "0.03%",
      {
        "text": "2369.46 →",
        "x": "2026-05-10T20:00",
        "y": 2369.46
      },
      {
        "text": "← 2263.43",
        "x": "2026-05-08T03:00",
        "y": 2263.43
      },
      "定位到...",
      "MA",
      "EMA",
      "BOLL",
      "TD",
      "BBI",
      "主力大单跟踪",
      "筹码分布",
      "Ichimoku",
      "SAR",
      "Alligator",
      "DC",
      "KC",
      "VOLUME",
      "Position",
      "MACD",
      "RSI",
      "KDJ",
      "爆仓统计",
      "LSUR",
      "FR",
      "Fundflow",
      "TTMU",
      "TTSI",
      "MLR",
      "BSV",
      "TVolume",
      "FTBS",
      "资金流向",
      "资金背离",
      "持仓差值",
      "买卖热度",
      "买卖笔数",
      "BASIS",
      "指数基差率",
      "现货基差率",
      "MA",
      "EMA",
      "对数",
      "%",
      "自动"
    ]
  }
}
